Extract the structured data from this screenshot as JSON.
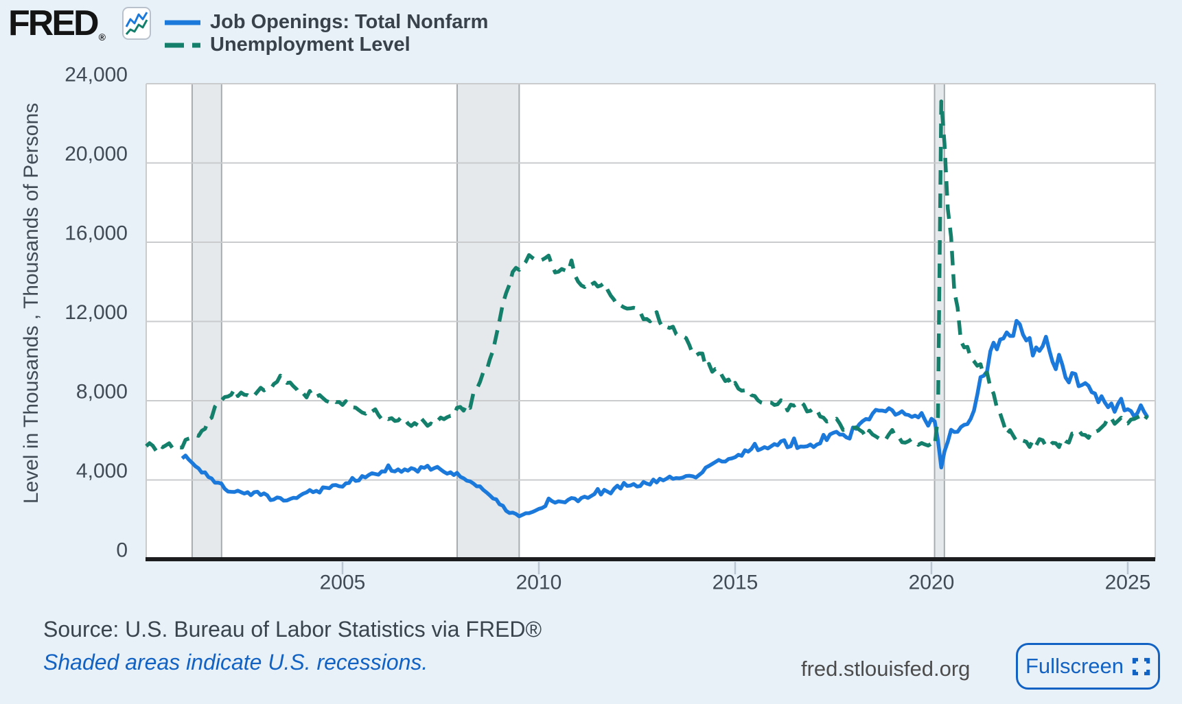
{
  "logo": {
    "text": "FRED",
    "registered_mark": "®"
  },
  "footer": {
    "source": "Source: U.S. Bureau of Labor Statistics via FRED®",
    "note": "Shaded areas indicate U.S. recessions.",
    "site": "fred.stlouisfed.org",
    "fullscreen_label": "Fullscreen"
  },
  "theme": {
    "page_background": "#e8f1f8",
    "plot_background": "#ffffff",
    "gridline": "#c9cbcd",
    "axis_line": "#1b1d1f",
    "tick_mark": "#b9c6d2",
    "tick_text": "#414b55",
    "legend_text": "#39424b",
    "footer_text": "#39444d",
    "link_blue": "#1262c4",
    "site_text": "#4c4c4c",
    "recession_fill": "#e5e9eb",
    "recession_edge": "#a7acb1",
    "logo_text": "#141414",
    "logo_icon_border": "#b9c2cc"
  },
  "chart_data": {
    "type": "line",
    "title": "",
    "xlabel": "",
    "ylabel": "Level in Thousands , Thousands of Persons",
    "xlim": [
      2000,
      2025.7
    ],
    "ylim": [
      0,
      24000
    ],
    "grid": true,
    "legend_position": "top-left",
    "x_ticks": [
      {
        "value": 2005,
        "label": "2005"
      },
      {
        "value": 2010,
        "label": "2010"
      },
      {
        "value": 2015,
        "label": "2015"
      },
      {
        "value": 2020,
        "label": "2020"
      },
      {
        "value": 2025,
        "label": "2025"
      }
    ],
    "y_ticks": [
      {
        "value": 0,
        "label": "0"
      },
      {
        "value": 4000,
        "label": "4,000"
      },
      {
        "value": 8000,
        "label": "8,000"
      },
      {
        "value": 12000,
        "label": "12,000"
      },
      {
        "value": 16000,
        "label": "16,000"
      },
      {
        "value": 20000,
        "label": "20,000"
      },
      {
        "value": 24000,
        "label": "24,000"
      }
    ],
    "recession_bands": [
      {
        "start": 2001.17,
        "end": 2001.92
      },
      {
        "start": 2007.92,
        "end": 2009.5
      },
      {
        "start": 2020.08,
        "end": 2020.33
      }
    ],
    "series": [
      {
        "name": "Job Openings: Total Nonfarm",
        "color": "#1c79dc",
        "dashed": false,
        "units": "thousands",
        "frequency": "monthly",
        "start_year": 2000,
        "start_month": 12,
        "values": [
          5088,
          5234,
          5030,
          4871,
          4700,
          4587,
          4370,
          4383,
          4150,
          4077,
          3862,
          3863,
          3818,
          3554,
          3414,
          3402,
          3394,
          3459,
          3384,
          3310,
          3383,
          3230,
          3382,
          3407,
          3238,
          3324,
          3223,
          2982,
          3016,
          3118,
          3088,
          2956,
          2965,
          3041,
          3100,
          3084,
          3209,
          3311,
          3372,
          3492,
          3382,
          3452,
          3363,
          3629,
          3609,
          3584,
          3734,
          3745,
          3681,
          3660,
          3832,
          3847,
          4103,
          3951,
          3976,
          4198,
          4128,
          4250,
          4339,
          4300,
          4268,
          4434,
          4424,
          4742,
          4462,
          4430,
          4534,
          4407,
          4536,
          4467,
          4595,
          4543,
          4416,
          4654,
          4611,
          4721,
          4514,
          4597,
          4661,
          4526,
          4408,
          4316,
          4389,
          4250,
          4360,
          4163,
          4084,
          3961,
          3927,
          3820,
          3683,
          3681,
          3502,
          3372,
          3226,
          3064,
          3020,
          2772,
          2700,
          2444,
          2334,
          2352,
          2287,
          2165,
          2240,
          2319,
          2323,
          2383,
          2457,
          2537,
          2587,
          2679,
          3066,
          2934,
          2852,
          2922,
          2900,
          2869,
          3003,
          3089,
          3063,
          2924,
          3089,
          3157,
          3094,
          3191,
          3289,
          3545,
          3263,
          3503,
          3410,
          3320,
          3558,
          3713,
          3565,
          3850,
          3699,
          3718,
          3797,
          3666,
          3692,
          3901,
          3818,
          3767,
          4020,
          3871,
          4064,
          3978,
          4058,
          4174,
          4057,
          4096,
          4082,
          4121,
          4196,
          4210,
          4187,
          4121,
          4254,
          4384,
          4626,
          4709,
          4812,
          4910,
          5010,
          4930,
          4930,
          5061,
          5090,
          5150,
          5270,
          5220,
          5500,
          5430,
          5570,
          5830,
          5500,
          5570,
          5660,
          5590,
          5700,
          5810,
          5750,
          5950,
          6010,
          5650,
          5700,
          6100,
          5610,
          5690,
          5680,
          5700,
          5790,
          5660,
          5790,
          5850,
          6280,
          6010,
          6300,
          6380,
          6430,
          6290,
          6290,
          6150,
          6090,
          6650,
          6580,
          6820,
          6970,
          7080,
          7050,
          7350,
          7540,
          7500,
          7500,
          7460,
          7620,
          7520,
          7290,
          7360,
          7470,
          7310,
          7280,
          7180,
          7250,
          7160,
          7380,
          7040,
          6740,
          7090,
          6960,
          5990,
          4630,
          5440,
          5930,
          6530,
          6420,
          6430,
          6670,
          6780,
          6820,
          7090,
          7500,
          8290,
          9190,
          9260,
          9480,
          10500,
          10930,
          10590,
          11090,
          11140,
          11450,
          11270,
          11270,
          12030,
          11860,
          11330,
          11040,
          11170,
          10280,
          10690,
          10510,
          10750,
          11230,
          10560,
          9970,
          9590,
          10320,
          9820,
          9170,
          8920,
          9400,
          9350,
          8730,
          8790,
          8890,
          8750,
          8430,
          8360,
          7920,
          8230,
          7910,
          7670,
          7860,
          7440,
          7840,
          8100,
          7510,
          7570,
          7480,
          7190,
          7390,
          7770,
          7440,
          7180
        ]
      },
      {
        "name": "Unemployment Level",
        "color": "#14806c",
        "dashed": true,
        "units": "thousands of persons",
        "frequency": "monthly",
        "start_year": 2000,
        "start_month": 1,
        "values": [
          5708,
          5858,
          5733,
          5481,
          5758,
          5651,
          5747,
          5853,
          5625,
          5534,
          5639,
          5634,
          6023,
          6089,
          6141,
          6271,
          6226,
          6484,
          6583,
          7042,
          7142,
          7694,
          7924,
          8023,
          8182,
          8215,
          8304,
          8599,
          8234,
          8413,
          8303,
          8279,
          8153,
          8260,
          8456,
          8654,
          8520,
          8618,
          8588,
          8842,
          8957,
          9266,
          9011,
          8896,
          8921,
          8732,
          8576,
          8317,
          8370,
          8167,
          8491,
          8170,
          8212,
          8286,
          8136,
          7990,
          7927,
          8061,
          7932,
          7934,
          7784,
          7980,
          7737,
          7672,
          7651,
          7524,
          7406,
          7345,
          7553,
          7453,
          7566,
          7279,
          7064,
          7184,
          7072,
          7120,
          6980,
          7001,
          7175,
          7091,
          6847,
          6727,
          6872,
          6762,
          7116,
          6927,
          6731,
          6850,
          6766,
          6979,
          7149,
          7067,
          7170,
          7237,
          7240,
          7645,
          7685,
          7497,
          7822,
          7637,
          8395,
          8575,
          8937,
          9438,
          9494,
          10074,
          10538,
          11286,
          12058,
          12898,
          13426,
          13853,
          14499,
          14707,
          14601,
          14814,
          15009,
          15352,
          15219,
          15098,
          15046,
          15113,
          15202,
          15325,
          14849,
          14474,
          14512,
          14648,
          14579,
          14516,
          15081,
          14348,
          14013,
          13820,
          13737,
          13957,
          13855,
          13962,
          13763,
          13818,
          13948,
          13594,
          13302,
          13093,
          12797,
          12813,
          12713,
          12646,
          12660,
          12692,
          12656,
          12471,
          12115,
          12124,
          12005,
          12298,
          12470,
          11954,
          11672,
          11735,
          11671,
          11736,
          11357,
          11241,
          11251,
          11161,
          10814,
          10376,
          10280,
          10387,
          10384,
          9702,
          9859,
          9460,
          9608,
          9599,
          9262,
          8990,
          9071,
          8717,
          8903,
          8610,
          8504,
          8526,
          8555,
          8280,
          8235,
          8017,
          7902,
          7848,
          7921,
          7907,
          7784,
          7820,
          8024,
          7933,
          7509,
          7799,
          7749,
          7853,
          7956,
          7788,
          7455,
          7490,
          7631,
          7528,
          7202,
          7145,
          6946,
          6983,
          6981,
          7091,
          6839,
          6521,
          6616,
          6593,
          6629,
          6658,
          6529,
          6419,
          6158,
          6489,
          6297,
          6200,
          6092,
          6155,
          6038,
          6301,
          6525,
          6195,
          6178,
          5905,
          5884,
          5958,
          6072,
          5968,
          5773,
          5867,
          5793,
          5735,
          5839,
          5749,
          7185,
          23109,
          20975,
          17691,
          16274,
          13521,
          12700,
          11009,
          10691,
          10718,
          10167,
          9992,
          9767,
          9844,
          9253,
          9420,
          8678,
          8362,
          7653,
          7353,
          6867,
          6310,
          6513,
          6237,
          5960,
          5913,
          5983,
          5926,
          5666,
          5997,
          5747,
          6060,
          6004,
          5698,
          5687,
          5873,
          5852,
          5659,
          6095,
          5953,
          5884,
          6340,
          6356,
          6507,
          6291,
          6268,
          6124,
          6458,
          6429,
          6492,
          6649,
          6811,
          7163,
          7115,
          6834,
          6984,
          7145,
          6886,
          6849,
          7052,
          7083,
          7165,
          7237,
          7015,
          7240
        ]
      }
    ]
  }
}
